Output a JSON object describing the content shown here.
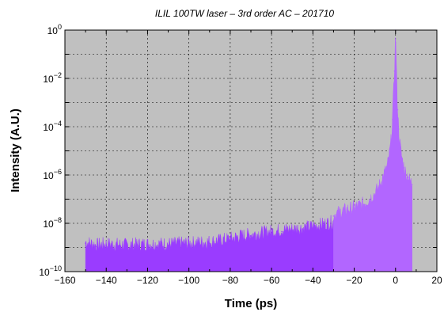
{
  "chart_data": {
    "type": "area",
    "title": "ILIL 100TW laser – 3rd order AC – 201710",
    "xlabel": "Time (ps)",
    "ylabel": "Intensity (A.U.)",
    "xlim": [
      -160,
      20
    ],
    "ylim": [
      1e-10,
      1
    ],
    "yscale": "log",
    "grid": true,
    "legend": "none",
    "background_color": "#c0c0c0",
    "x_ticks": [
      -160,
      -140,
      -120,
      -100,
      -80,
      -60,
      -40,
      -20,
      0,
      20
    ],
    "y_ticks": [
      {
        "value": 1e-10,
        "base": "10",
        "exp": "−10"
      },
      {
        "value": 1e-08,
        "base": "10",
        "exp": "−8"
      },
      {
        "value": 1e-06,
        "base": "10",
        "exp": "−6"
      },
      {
        "value": 0.0001,
        "base": "10",
        "exp": "−4"
      },
      {
        "value": 0.01,
        "base": "10",
        "exp": "−2"
      },
      {
        "value": 1,
        "base": "10",
        "exp": "0"
      }
    ],
    "series": [
      {
        "color": "#9a3cff",
        "x": [
          -150,
          -145,
          -140,
          -130,
          -120,
          -110,
          -100,
          -90,
          -85,
          -80,
          -75,
          -70,
          -65,
          -60,
          -55,
          -50,
          -45,
          -40,
          -35,
          -30
        ],
        "y": [
          1.5e-09,
          1.1e-09,
          1.2e-09,
          1.1e-09,
          1.2e-09,
          1.2e-09,
          1.3e-09,
          1.5e-09,
          1.7e-09,
          2e-09,
          2.6e-09,
          3e-09,
          3.5e-09,
          4e-09,
          4.5e-09,
          5e-09,
          5.5e-09,
          6.5e-09,
          8e-09,
          1e-08
        ]
      },
      {
        "color": "#b266ff",
        "x": [
          -30,
          -25,
          -20,
          -15,
          -10,
          -8,
          -6,
          -4,
          -3,
          -2,
          -1.5,
          -1,
          -0.5,
          0,
          0.5,
          1,
          1.5,
          2,
          3,
          4,
          5,
          6,
          7,
          8
        ],
        "y": [
          2e-08,
          3e-08,
          4e-08,
          6e-08,
          1.5e-07,
          3e-07,
          8e-07,
          2e-06,
          6e-06,
          3e-05,
          0.0002,
          0.002,
          0.02,
          1,
          0.01,
          0.0005,
          8e-05,
          2e-05,
          5e-06,
          2e-06,
          1e-06,
          8e-07,
          5e-07,
          4e-07
        ]
      }
    ]
  }
}
